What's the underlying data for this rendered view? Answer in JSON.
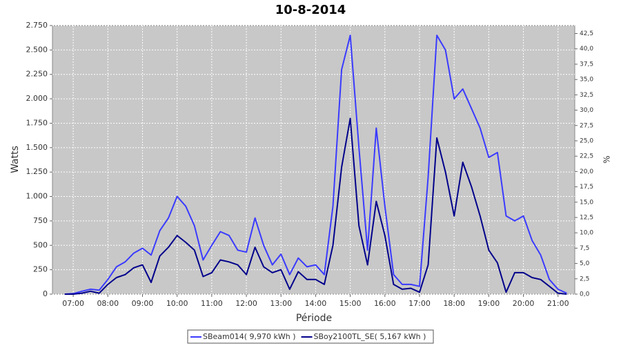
{
  "chart_data": {
    "type": "line",
    "title": "10-8-2014",
    "x_label": "Période",
    "y_label": "Watts",
    "y2_label": "%",
    "x": [
      "06:45",
      "07:00",
      "07:15",
      "07:30",
      "07:45",
      "08:00",
      "08:15",
      "08:30",
      "08:45",
      "09:00",
      "09:15",
      "09:30",
      "09:45",
      "10:00",
      "10:15",
      "10:30",
      "10:45",
      "11:00",
      "11:15",
      "11:30",
      "11:45",
      "12:00",
      "12:15",
      "12:30",
      "12:45",
      "13:00",
      "13:15",
      "13:30",
      "13:45",
      "14:00",
      "14:15",
      "14:30",
      "14:45",
      "15:00",
      "15:15",
      "15:30",
      "15:45",
      "16:00",
      "16:15",
      "16:30",
      "16:45",
      "17:00",
      "17:15",
      "17:30",
      "17:45",
      "18:00",
      "18:15",
      "18:30",
      "18:45",
      "19:00",
      "19:15",
      "19:30",
      "19:45",
      "20:00",
      "20:15",
      "20:30",
      "20:45",
      "21:00",
      "21:15"
    ],
    "xlim": [
      "06:24",
      "21:29"
    ],
    "xticks": [
      "07:00",
      "08:00",
      "09:00",
      "10:00",
      "11:00",
      "12:00",
      "13:00",
      "14:00",
      "15:00",
      "16:00",
      "17:00",
      "18:00",
      "19:00",
      "20:00",
      "21:00"
    ],
    "series": [
      {
        "name": "SBeam014( 9,970 kWh )",
        "color": "#3a3aff",
        "values": [
          0,
          5,
          30,
          50,
          40,
          150,
          280,
          330,
          420,
          470,
          400,
          650,
          780,
          1000,
          900,
          700,
          350,
          500,
          640,
          600,
          450,
          430,
          780,
          500,
          300,
          410,
          200,
          370,
          280,
          300,
          200,
          900,
          2300,
          2650,
          1500,
          450,
          1700,
          900,
          200,
          100,
          100,
          80,
          1200,
          2650,
          2500,
          2000,
          2100,
          1900,
          1700,
          1400,
          1450,
          800,
          750,
          800,
          550,
          400,
          150,
          50,
          10
        ]
      },
      {
        "name": "SBoy2100TL_SE( 5,167 kWh )",
        "color": "#00008b",
        "values": [
          0,
          0,
          10,
          30,
          10,
          100,
          170,
          200,
          270,
          300,
          120,
          390,
          480,
          600,
          530,
          450,
          180,
          220,
          350,
          330,
          300,
          200,
          480,
          280,
          220,
          250,
          50,
          230,
          150,
          150,
          100,
          500,
          1300,
          1800,
          700,
          300,
          950,
          600,
          100,
          50,
          60,
          20,
          300,
          1600,
          1250,
          800,
          1350,
          1100,
          800,
          450,
          320,
          20,
          220,
          220,
          170,
          150,
          80,
          10,
          0
        ]
      }
    ],
    "ylim": [
      0,
      2750
    ],
    "yticks": [
      0,
      250,
      500,
      750,
      {
        "value": 1000,
        "label": "1.000"
      },
      {
        "value": 1250,
        "label": "1.250"
      },
      {
        "value": 1500,
        "label": "1.500"
      },
      {
        "value": 1750,
        "label": "1.750"
      },
      {
        "value": 2000,
        "label": "2.000"
      },
      {
        "value": 2250,
        "label": "2.250"
      },
      {
        "value": 2500,
        "label": "2.500"
      },
      {
        "value": 2750,
        "label": "2.750"
      }
    ],
    "y2lim": [
      0,
      43.8
    ],
    "y2ticks": [
      {
        "value": 0,
        "label": "0,0"
      },
      {
        "value": 2.5,
        "label": "2,5"
      },
      {
        "value": 5,
        "label": "5,0"
      },
      {
        "value": 7.5,
        "label": "7,5"
      },
      {
        "value": 10,
        "label": "10,0"
      },
      {
        "value": 12.5,
        "label": "12,5"
      },
      {
        "value": 15,
        "label": "15,0"
      },
      {
        "value": 17.5,
        "label": "17,5"
      },
      {
        "value": 20,
        "label": "20,0"
      },
      {
        "value": 22.5,
        "label": "22,5"
      },
      {
        "value": 25,
        "label": "25,0"
      },
      {
        "value": 27.5,
        "label": "27,5"
      },
      {
        "value": 30,
        "label": "30,0"
      },
      {
        "value": 32.5,
        "label": "32,5"
      },
      {
        "value": 35,
        "label": "35,0"
      },
      {
        "value": 37.5,
        "label": "37,5"
      },
      {
        "value": 40,
        "label": "40,0"
      },
      {
        "value": 42.5,
        "label": "42,5"
      }
    ],
    "grid": true
  }
}
